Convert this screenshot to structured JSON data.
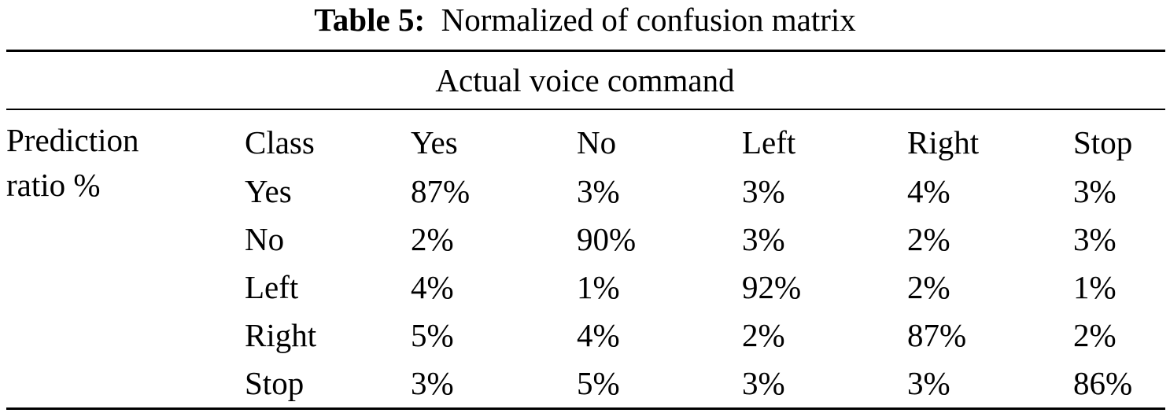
{
  "caption": {
    "label": "Table 5:",
    "text": "Normalized of confusion matrix"
  },
  "table": {
    "group_header": "Actual voice command",
    "stub_line1": "Prediction",
    "stub_line2": "ratio %",
    "header": [
      "Class",
      "Yes",
      "No",
      "Left",
      "Right",
      "Stop"
    ],
    "rows": [
      [
        "Yes",
        "87%",
        "3%",
        "3%",
        "4%",
        "3%"
      ],
      [
        "No",
        "2%",
        "90%",
        "3%",
        "2%",
        "3%"
      ],
      [
        "Left",
        "4%",
        "1%",
        "92%",
        "2%",
        "1%"
      ],
      [
        "Right",
        "5%",
        "4%",
        "2%",
        "87%",
        "2%"
      ],
      [
        "Stop",
        "3%",
        "5%",
        "3%",
        "3%",
        "86%"
      ]
    ]
  }
}
